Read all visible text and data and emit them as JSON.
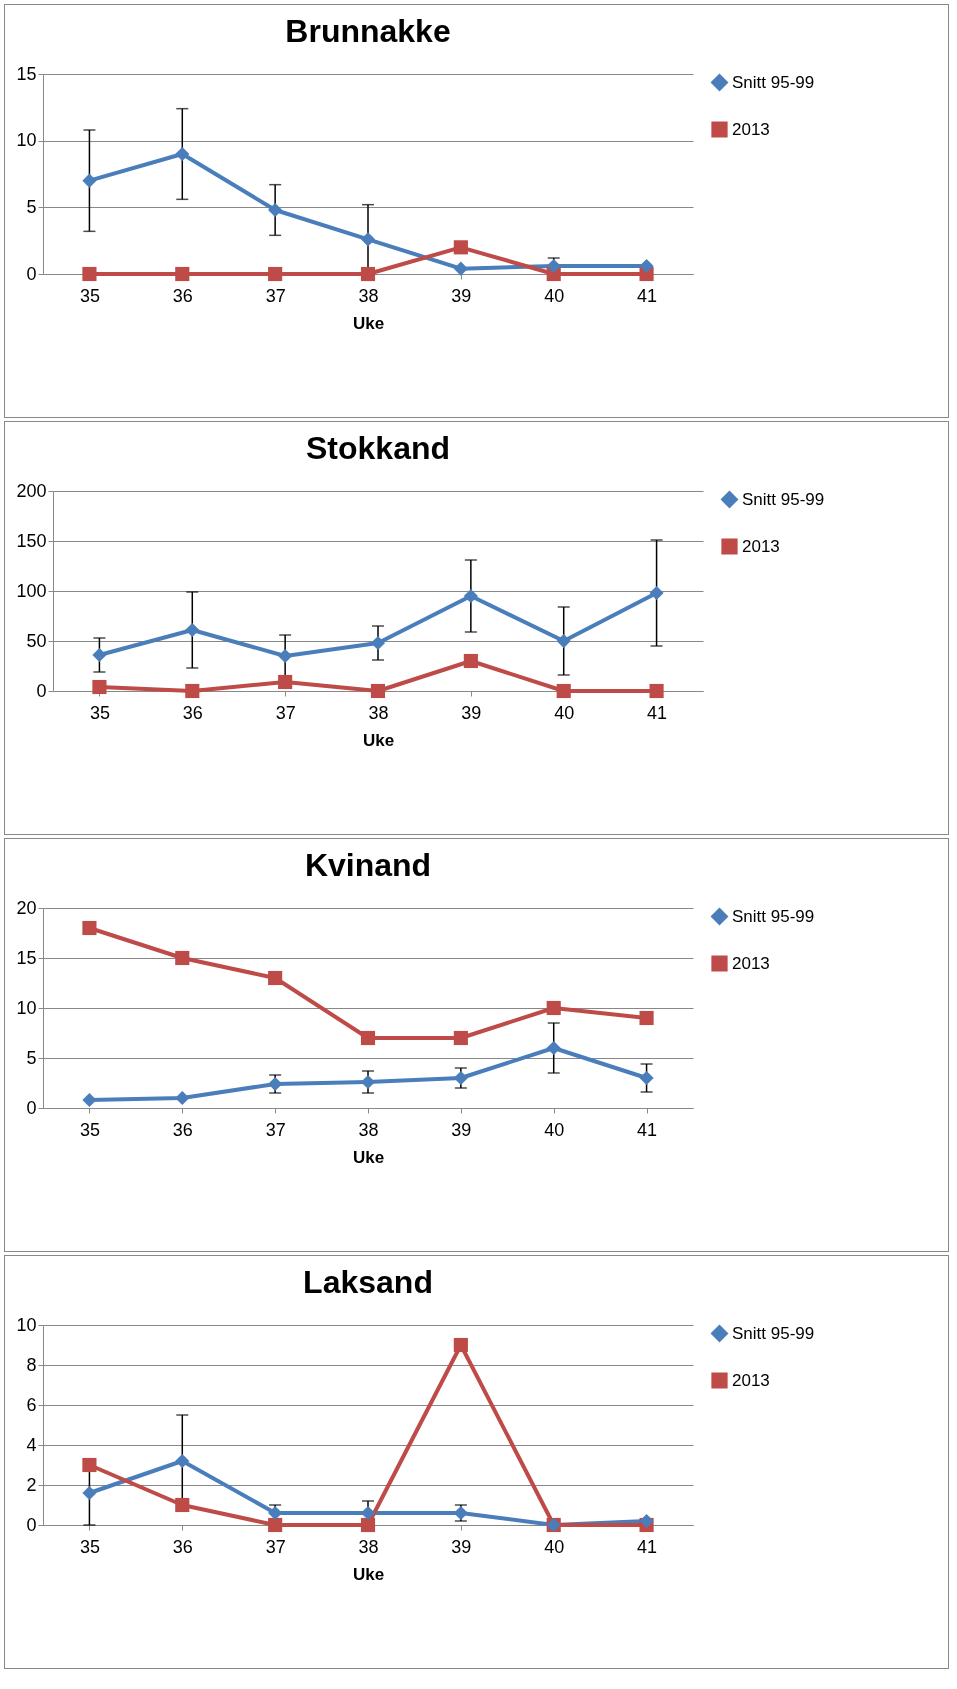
{
  "chart_data": [
    {
      "type": "line",
      "title": "Brunnakke",
      "xlabel": "Uke",
      "categories": [
        "35",
        "36",
        "37",
        "38",
        "39",
        "40",
        "41"
      ],
      "ylim": [
        0,
        15
      ],
      "yticks": [
        0,
        5,
        10,
        15
      ],
      "grid": "y",
      "legend": "right",
      "line_style": "solid",
      "series": [
        {
          "name": "Snitt 95-99",
          "color": "#4a7ebb",
          "marker": "diamond",
          "values": [
            7.0,
            9.0,
            4.8,
            2.6,
            0.4,
            0.6,
            0.6
          ],
          "errors": [
            3.8,
            3.4,
            1.9,
            2.6,
            null,
            0.6,
            null
          ]
        },
        {
          "name": "2013",
          "color": "#be4b48",
          "marker": "square",
          "values": [
            0,
            0,
            0,
            0,
            2,
            0,
            0
          ]
        }
      ]
    },
    {
      "type": "line",
      "title": "Stokkand",
      "xlabel": "Uke",
      "categories": [
        "35",
        "36",
        "37",
        "38",
        "39",
        "40",
        "41"
      ],
      "ylim": [
        0,
        200
      ],
      "yticks": [
        0,
        50,
        100,
        150,
        200
      ],
      "grid": "y",
      "legend": "right",
      "line_style": "solid",
      "series": [
        {
          "name": "Snitt 95-99",
          "color": "#4a7ebb",
          "marker": "diamond",
          "values": [
            36,
            61,
            35,
            48,
            95,
            50,
            98
          ],
          "errors": [
            17,
            38,
            21,
            17,
            36,
            34,
            53
          ]
        },
        {
          "name": "2013",
          "color": "#be4b48",
          "marker": "square",
          "values": [
            4,
            0,
            9,
            0,
            30,
            0,
            0
          ]
        }
      ]
    },
    {
      "type": "line",
      "title": "Kvinand",
      "xlabel": "Uke",
      "categories": [
        "35",
        "36",
        "37",
        "38",
        "39",
        "40",
        "41"
      ],
      "ylim": [
        0,
        20
      ],
      "yticks": [
        0,
        5,
        10,
        15,
        20
      ],
      "grid": "y",
      "legend": "right",
      "line_style": "solid",
      "series": [
        {
          "name": "Snitt 95-99",
          "color": "#4a7ebb",
          "marker": "diamond",
          "values": [
            0.8,
            1.0,
            2.4,
            2.6,
            3.0,
            6.0,
            3.0
          ],
          "errors": [
            null,
            null,
            0.9,
            1.1,
            1.0,
            2.5,
            1.4
          ]
        },
        {
          "name": "2013",
          "color": "#be4b48",
          "marker": "square",
          "values": [
            18,
            15,
            13,
            7,
            7,
            10,
            9
          ]
        }
      ]
    },
    {
      "type": "line",
      "title": "Laksand",
      "xlabel": "Uke",
      "categories": [
        "35",
        "36",
        "37",
        "38",
        "39",
        "40",
        "41"
      ],
      "ylim": [
        0,
        10
      ],
      "yticks": [
        0,
        2,
        4,
        6,
        8,
        10
      ],
      "grid": "y",
      "legend": "right",
      "line_style": "solid",
      "series": [
        {
          "name": "Snitt 95-99",
          "color": "#4a7ebb",
          "marker": "diamond",
          "values": [
            1.6,
            3.2,
            0.6,
            0.6,
            0.6,
            0,
            0.2
          ],
          "errors": [
            1.6,
            2.3,
            0.4,
            0.6,
            0.4,
            null,
            null
          ]
        },
        {
          "name": "2013",
          "color": "#be4b48",
          "marker": "square",
          "values": [
            3,
            1,
            0,
            0,
            9,
            0,
            0
          ]
        }
      ]
    }
  ]
}
